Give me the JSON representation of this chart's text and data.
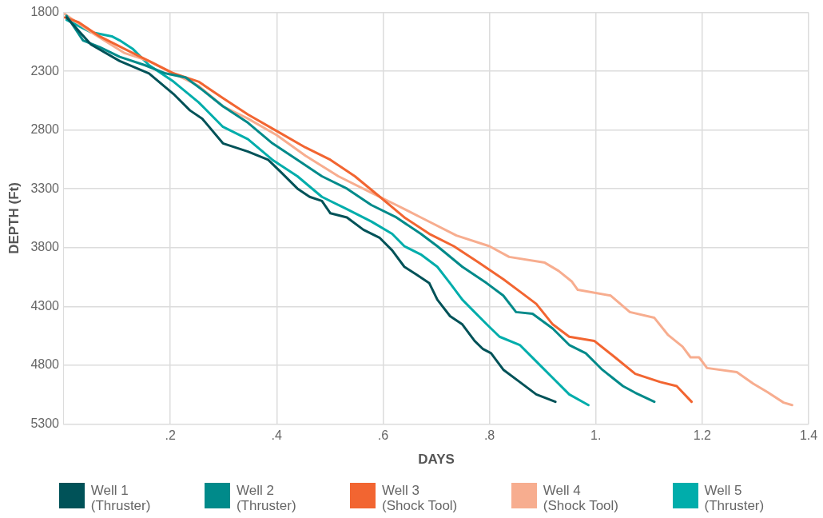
{
  "chart_data": {
    "type": "line",
    "xlabel": "DAYS",
    "ylabel": "DEPTH (Ft)",
    "xlim": [
      0,
      1.4
    ],
    "xticks": [
      {
        "value": 0.2,
        "label": ".2"
      },
      {
        "value": 0.4,
        "label": ".4"
      },
      {
        "value": 0.6,
        "label": ".6"
      },
      {
        "value": 0.8,
        "label": ".8"
      },
      {
        "value": 1.0,
        "label": "1."
      },
      {
        "value": 1.2,
        "label": "1.2"
      },
      {
        "value": 1.4,
        "label": "1.4"
      }
    ],
    "ylim": [
      5300,
      1800
    ],
    "yticks": [
      1800,
      2300,
      2800,
      3300,
      3800,
      4300,
      4800,
      5300
    ],
    "grid": true,
    "legend": "bottom",
    "marker": "none",
    "line_style": "solid",
    "series": [
      {
        "name": "Well 1 (Thruster)",
        "color": "#005258",
        "x": [
          0.005,
          0.051,
          0.105,
          0.16,
          0.206,
          0.237,
          0.26,
          0.299,
          0.346,
          0.384,
          0.408,
          0.439,
          0.462,
          0.485,
          0.501,
          0.532,
          0.563,
          0.594,
          0.617,
          0.64,
          0.664,
          0.687,
          0.702,
          0.726,
          0.749,
          0.772,
          0.788,
          0.803,
          0.826,
          0.857,
          0.888,
          0.924
        ],
        "values": [
          1842,
          2073,
          2213,
          2318,
          2493,
          2633,
          2703,
          2913,
          2983,
          3053,
          3158,
          3298,
          3368,
          3403,
          3508,
          3543,
          3648,
          3718,
          3823,
          3963,
          4033,
          4103,
          4243,
          4383,
          4453,
          4593,
          4663,
          4698,
          4838,
          4943,
          5048,
          5111
        ]
      },
      {
        "name": "Well 2 (Thruster)",
        "color": "#008a8a",
        "x": [
          0.005,
          0.036,
          0.067,
          0.105,
          0.152,
          0.191,
          0.229,
          0.26,
          0.299,
          0.346,
          0.392,
          0.439,
          0.485,
          0.532,
          0.578,
          0.625,
          0.671,
          0.702,
          0.749,
          0.795,
          0.826,
          0.85,
          0.881,
          0.919,
          0.95,
          0.981,
          1.012,
          1.051,
          1.074,
          1.11
        ],
        "values": [
          1828,
          2038,
          2094,
          2178,
          2248,
          2318,
          2353,
          2458,
          2598,
          2738,
          2913,
          3053,
          3193,
          3298,
          3438,
          3543,
          3683,
          3788,
          3963,
          4103,
          4208,
          4348,
          4362,
          4488,
          4628,
          4698,
          4838,
          4978,
          5034,
          5111
        ]
      },
      {
        "name": "Well 3 (Shock Tool)",
        "color": "#f26531",
        "x": [
          0.002,
          0.028,
          0.067,
          0.113,
          0.16,
          0.206,
          0.253,
          0.299,
          0.346,
          0.4,
          0.454,
          0.501,
          0.547,
          0.594,
          0.64,
          0.687,
          0.733,
          0.78,
          0.826,
          0.857,
          0.888,
          0.919,
          0.95,
          0.997,
          1.036,
          1.074,
          1.121,
          1.152,
          1.18
        ],
        "values": [
          1842,
          1884,
          2003,
          2108,
          2213,
          2318,
          2388,
          2528,
          2668,
          2808,
          2948,
          3053,
          3193,
          3368,
          3543,
          3683,
          3788,
          3928,
          4068,
          4173,
          4278,
          4453,
          4558,
          4593,
          4733,
          4873,
          4943,
          4978,
          5111
        ]
      },
      {
        "name": "Well 4 (Shock Tool)",
        "color": "#f7ad8f",
        "x": [
          0.002,
          0.051,
          0.113,
          0.16,
          0.206,
          0.253,
          0.299,
          0.346,
          0.4,
          0.454,
          0.516,
          0.578,
          0.625,
          0.671,
          0.738,
          0.8,
          0.837,
          0.904,
          0.93,
          0.955,
          0.966,
          1.028,
          1.064,
          1.11,
          1.136,
          1.163,
          1.178,
          1.194,
          1.209,
          1.265,
          1.296,
          1.322,
          1.353,
          1.369
        ],
        "values": [
          1814,
          1968,
          2143,
          2213,
          2318,
          2423,
          2598,
          2703,
          2843,
          3018,
          3193,
          3333,
          3438,
          3543,
          3697,
          3788,
          3879,
          3928,
          3998,
          4089,
          4159,
          4208,
          4348,
          4397,
          4544,
          4642,
          4733,
          4733,
          4824,
          4859,
          4957,
          5027,
          5118,
          5139
        ]
      },
      {
        "name": "Well 5 (Thruster)",
        "color": "#00adab",
        "x": [
          0.005,
          0.051,
          0.09,
          0.105,
          0.129,
          0.16,
          0.206,
          0.253,
          0.299,
          0.346,
          0.392,
          0.439,
          0.485,
          0.532,
          0.578,
          0.617,
          0.64,
          0.671,
          0.702,
          0.726,
          0.749,
          0.772,
          0.795,
          0.819,
          0.857,
          0.888,
          0.919,
          0.95,
          0.986
        ],
        "values": [
          1863,
          1968,
          2003,
          2038,
          2108,
          2248,
          2388,
          2563,
          2773,
          2878,
          3053,
          3193,
          3368,
          3473,
          3578,
          3683,
          3788,
          3858,
          3963,
          4103,
          4243,
          4348,
          4453,
          4558,
          4628,
          4768,
          4908,
          5048,
          5139
        ]
      }
    ]
  }
}
